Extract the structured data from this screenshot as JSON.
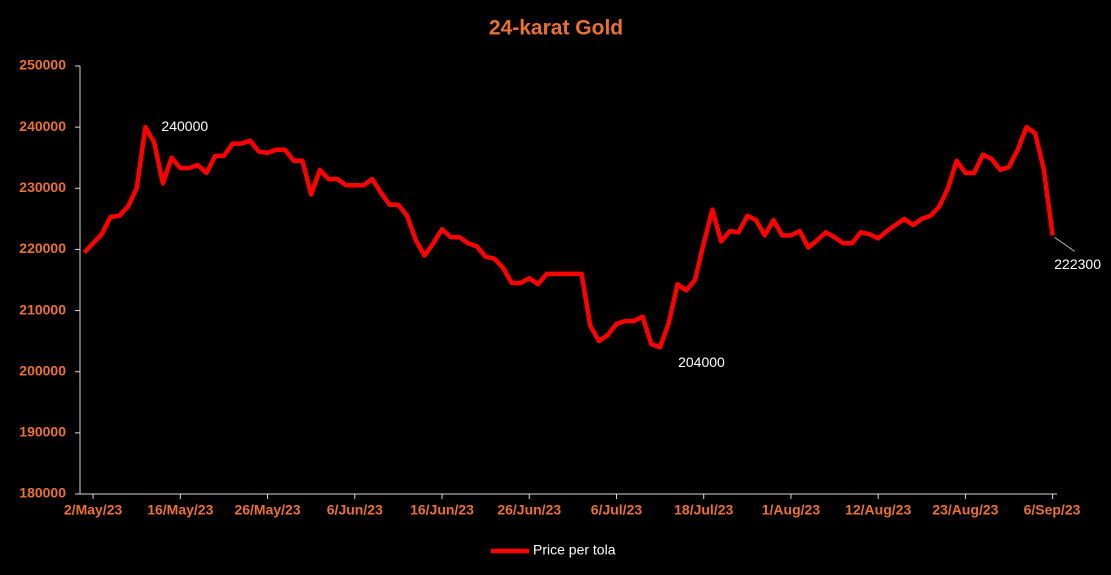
{
  "chart_data": {
    "type": "line",
    "title": "24-karat Gold",
    "categories": [
      null,
      "2/May/23",
      null,
      null,
      null,
      null,
      null,
      null,
      null,
      null,
      null,
      "16/May/23",
      null,
      null,
      null,
      null,
      null,
      null,
      null,
      null,
      null,
      "26/May/23",
      null,
      null,
      null,
      null,
      null,
      null,
      null,
      null,
      null,
      "6/Jun/23",
      null,
      null,
      null,
      null,
      null,
      null,
      null,
      null,
      null,
      "16/Jun/23",
      null,
      null,
      null,
      null,
      null,
      null,
      null,
      null,
      null,
      "26/Jun/23",
      null,
      null,
      null,
      null,
      null,
      null,
      null,
      null,
      null,
      "6/Jul/23",
      null,
      null,
      null,
      null,
      null,
      null,
      null,
      null,
      null,
      "18/Jul/23",
      null,
      null,
      null,
      null,
      null,
      null,
      null,
      null,
      null,
      "1/Aug/23",
      null,
      null,
      null,
      null,
      null,
      null,
      null,
      null,
      null,
      "12/Aug/23",
      null,
      null,
      null,
      null,
      null,
      null,
      null,
      null,
      null,
      "23/Aug/23",
      null,
      null,
      null,
      null,
      null,
      null,
      null,
      null,
      null,
      "6/Sep/23"
    ],
    "series": [
      {
        "name": "Price per tola",
        "color": "#ff0000",
        "values": [
          219500,
          221000,
          222500,
          225300,
          225500,
          227000,
          230000,
          240000,
          237500,
          230800,
          235000,
          233300,
          233300,
          233800,
          232500,
          235300,
          235300,
          237300,
          237300,
          237800,
          236000,
          235800,
          236300,
          236300,
          234500,
          234500,
          229000,
          233000,
          231500,
          231500,
          230500,
          230500,
          230500,
          231500,
          229300,
          227300,
          227300,
          225500,
          221500,
          219000,
          221000,
          223300,
          222000,
          222000,
          221000,
          220500,
          218800,
          218500,
          217000,
          214500,
          214500,
          215300,
          214300,
          216000,
          216000,
          216000,
          216000,
          216000,
          207500,
          205000,
          206000,
          207800,
          208300,
          208300,
          209000,
          204500,
          204000,
          208000,
          214300,
          213300,
          215000,
          221000,
          226500,
          221300,
          223000,
          222800,
          225500,
          224800,
          222300,
          224800,
          222300,
          222300,
          223000,
          220300,
          221500,
          222800,
          222000,
          221000,
          221000,
          222800,
          222500,
          221800,
          223000,
          224000,
          225000,
          224000,
          225000,
          225500,
          227000,
          230000,
          234500,
          232500,
          232500,
          235500,
          234800,
          233000,
          233500,
          236300,
          240000,
          239000,
          233000,
          222300
        ],
        "value_labels": [
          null,
          null,
          null,
          null,
          null,
          null,
          null,
          "240000",
          null,
          null,
          null,
          null,
          null,
          null,
          null,
          null,
          null,
          null,
          null,
          null,
          null,
          null,
          null,
          null,
          null,
          null,
          null,
          null,
          null,
          null,
          null,
          null,
          null,
          null,
          null,
          null,
          null,
          null,
          null,
          null,
          null,
          null,
          null,
          null,
          null,
          null,
          null,
          null,
          null,
          null,
          null,
          null,
          null,
          null,
          null,
          null,
          null,
          null,
          null,
          null,
          null,
          null,
          null,
          null,
          null,
          null,
          "204000",
          null,
          null,
          null,
          null,
          null,
          null,
          null,
          null,
          null,
          null,
          null,
          null,
          null,
          null,
          null,
          null,
          null,
          null,
          null,
          null,
          null,
          null,
          null,
          null,
          null,
          null,
          null,
          null,
          null,
          null,
          null,
          null,
          null,
          null,
          null,
          null,
          null,
          null,
          null,
          null,
          null,
          null,
          null,
          null,
          "222300"
        ]
      }
    ],
    "ylim": [
      180000,
      250000
    ],
    "yticks": [
      180000,
      190000,
      200000,
      210000,
      220000,
      230000,
      240000,
      250000
    ]
  }
}
